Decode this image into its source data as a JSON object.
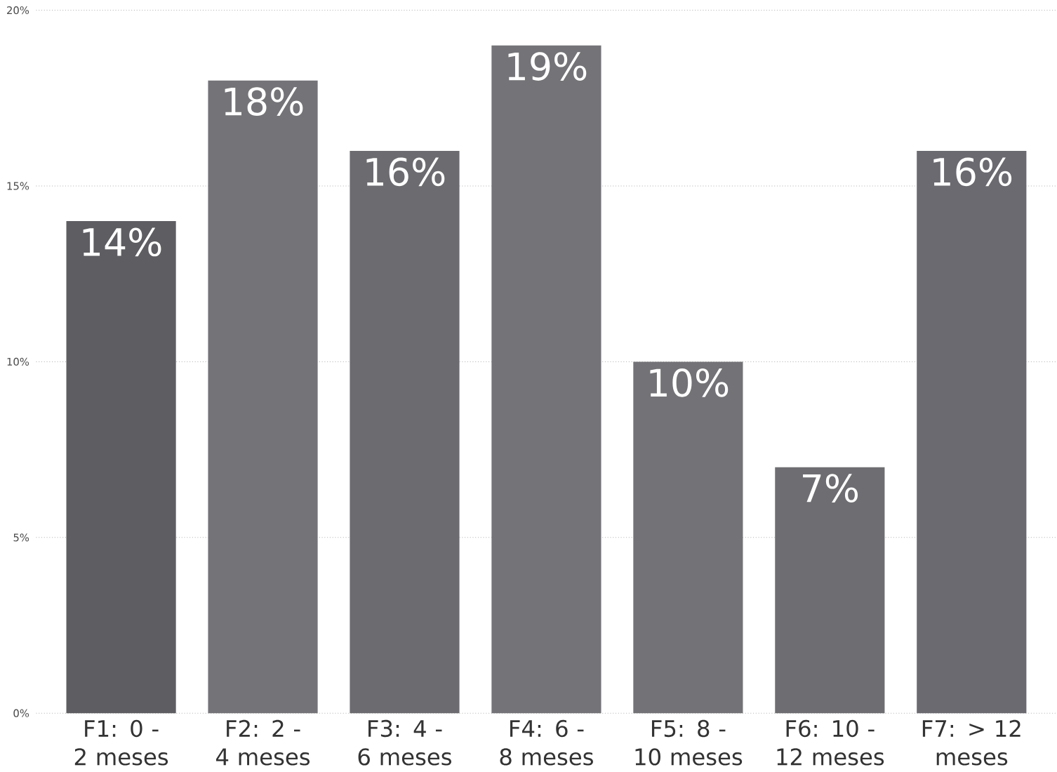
{
  "chart_data": {
    "type": "bar",
    "categories": [
      "F1: 0 - 2 meses",
      "F2: 2 - 4 meses",
      "F3: 4 - 6 meses",
      "F4: 6 - 8 meses",
      "F5: 8 - 10 meses",
      "F6: 10 - 12 meses",
      "F7: > 12 meses"
    ],
    "values": [
      14,
      18,
      16,
      19,
      10,
      7,
      16
    ],
    "colors": [
      "#5e5e62",
      "#747478",
      "#6c6c70",
      "#747478",
      "#737377",
      "#6e6e72",
      "#6a6a70"
    ],
    "value_labels": [
      "14%",
      "18%",
      "16%",
      "19%",
      "10%",
      "7%",
      "16%"
    ],
    "ylim": [
      0,
      20
    ],
    "yticks": [
      {
        "value": 0,
        "label": "0%"
      },
      {
        "value": 5,
        "label": "5%"
      },
      {
        "value": 10,
        "label": "10%"
      },
      {
        "value": 15,
        "label": "15%"
      },
      {
        "value": 20,
        "label": "20%"
      }
    ],
    "grid": "y"
  }
}
